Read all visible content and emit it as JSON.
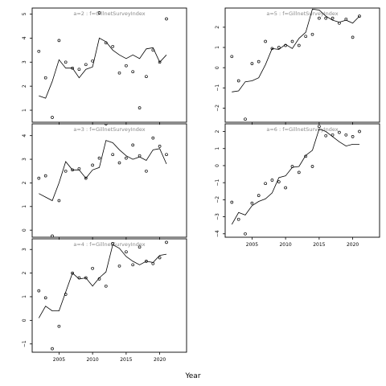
{
  "chart_data": {
    "type": "scatter",
    "xlabel": "Year",
    "xlim": [
      2001,
      2024
    ],
    "x_ticks": [
      2005,
      2010,
      2015,
      2020
    ],
    "panels": [
      {
        "label": "a=2 : f=GillnetSurveyIndex",
        "ylim": [
          0.5,
          5.25
        ],
        "y_ticks": [
          1,
          2,
          3,
          4,
          5
        ],
        "observed": {
          "x": [
            2002,
            2003,
            2004,
            2005,
            2006,
            2007,
            2008,
            2009,
            2010,
            2011,
            2012,
            2013,
            2014,
            2015,
            2016,
            2017,
            2018,
            2019,
            2020,
            2021
          ],
          "y": [
            3.45,
            2.35,
            0.7,
            3.9,
            3.0,
            2.75,
            2.7,
            2.9,
            3.05,
            5.05,
            3.8,
            3.65,
            2.55,
            2.85,
            2.6,
            1.1,
            2.4,
            3.5,
            3.0,
            4.8
          ]
        },
        "fitted": {
          "x": [
            2002,
            2003,
            2004,
            2005,
            2006,
            2007,
            2008,
            2009,
            2010,
            2011,
            2012,
            2013,
            2014,
            2015,
            2016,
            2017,
            2018,
            2019,
            2020,
            2021
          ],
          "y": [
            1.6,
            1.5,
            2.2,
            3.1,
            2.75,
            2.75,
            2.35,
            2.7,
            2.8,
            4.0,
            3.85,
            3.5,
            3.3,
            3.15,
            3.3,
            3.15,
            3.55,
            3.6,
            3.0,
            3.3
          ]
        }
      },
      {
        "label": "a=3 : f=GillnetSurveyIndex",
        "ylim": [
          -0.3,
          4.5
        ],
        "y_ticks": [
          0,
          1,
          2,
          3,
          4
        ],
        "observed": {
          "x": [
            2002,
            2003,
            2004,
            2005,
            2006,
            2007,
            2008,
            2009,
            2010,
            2011,
            2012,
            2013,
            2014,
            2015,
            2016,
            2017,
            2018,
            2019,
            2020,
            2021
          ],
          "y": [
            2.2,
            2.3,
            -0.25,
            1.25,
            2.5,
            2.55,
            2.6,
            2.2,
            2.75,
            3.05,
            4.5,
            3.2,
            2.85,
            3.05,
            3.6,
            3.15,
            2.5,
            3.9,
            3.55,
            3.2
          ]
        },
        "fitted": {
          "x": [
            2002,
            2003,
            2004,
            2005,
            2006,
            2007,
            2008,
            2009,
            2010,
            2011,
            2012,
            2013,
            2014,
            2015,
            2016,
            2017,
            2018,
            2019,
            2020,
            2021
          ],
          "y": [
            1.55,
            1.4,
            1.25,
            2.0,
            2.9,
            2.55,
            2.55,
            2.2,
            2.55,
            2.65,
            3.8,
            3.7,
            3.4,
            3.15,
            3.0,
            3.1,
            2.95,
            3.4,
            3.45,
            2.8
          ]
        }
      },
      {
        "label": "a=4 : f=GillnetSurveyIndex",
        "ylim": [
          -1.35,
          3.45
        ],
        "y_ticks": [
          -1,
          0,
          1,
          2,
          3
        ],
        "observed": {
          "x": [
            2002,
            2003,
            2004,
            2005,
            2006,
            2007,
            2008,
            2009,
            2010,
            2011,
            2012,
            2013,
            2014,
            2015,
            2016,
            2017,
            2018,
            2019,
            2020,
            2021
          ],
          "y": [
            1.25,
            0.95,
            -1.2,
            -0.25,
            1.1,
            2.0,
            1.8,
            1.8,
            2.2,
            1.75,
            1.45,
            3.25,
            2.3,
            2.9,
            2.35,
            3.1,
            2.5,
            2.4,
            2.65,
            3.3
          ]
        },
        "fitted": {
          "x": [
            2002,
            2003,
            2004,
            2005,
            2006,
            2007,
            2008,
            2009,
            2010,
            2011,
            2012,
            2013,
            2014,
            2015,
            2016,
            2017,
            2018,
            2019,
            2020,
            2021
          ],
          "y": [
            0.1,
            0.6,
            0.4,
            0.4,
            1.2,
            2.0,
            1.75,
            1.8,
            1.45,
            1.8,
            2.05,
            3.2,
            3.05,
            2.7,
            2.5,
            2.35,
            2.5,
            2.45,
            2.75,
            2.8
          ]
        }
      },
      {
        "label": "a=5 : f=GillnetSurveyIndex",
        "ylim": [
          -2.7,
          2.95
        ],
        "y_ticks": [
          -2,
          -1,
          0,
          1,
          2
        ],
        "observed": {
          "x": [
            2002,
            2003,
            2004,
            2005,
            2006,
            2007,
            2008,
            2009,
            2010,
            2011,
            2012,
            2013,
            2014,
            2015,
            2016,
            2017,
            2018,
            2019,
            2020,
            2021
          ],
          "y": [
            0.55,
            -0.65,
            -2.55,
            0.2,
            0.3,
            1.3,
            0.95,
            1.0,
            1.1,
            1.3,
            1.1,
            1.55,
            1.65,
            2.45,
            2.45,
            2.45,
            2.2,
            2.4,
            1.5,
            2.55
          ]
        },
        "fitted": {
          "x": [
            2002,
            2003,
            2004,
            2005,
            2006,
            2007,
            2008,
            2009,
            2010,
            2011,
            2012,
            2013,
            2014,
            2015,
            2016,
            2017,
            2018,
            2019,
            2020,
            2021
          ],
          "y": [
            -1.2,
            -1.15,
            -0.7,
            -0.65,
            -0.5,
            0.15,
            0.95,
            0.9,
            1.15,
            0.95,
            1.45,
            1.75,
            2.9,
            2.85,
            2.55,
            2.35,
            2.25,
            2.35,
            2.2,
            2.55
          ]
        }
      },
      {
        "label": "a=6 : f=GillnetSurveyIndex",
        "ylim": [
          -4.2,
          2.45
        ],
        "y_ticks": [
          -4,
          -3,
          -2,
          -1,
          0,
          1,
          2
        ],
        "observed": {
          "x": [
            2002,
            2003,
            2004,
            2005,
            2006,
            2007,
            2008,
            2009,
            2010,
            2011,
            2012,
            2013,
            2014,
            2015,
            2016,
            2017,
            2018,
            2019,
            2020,
            2021
          ],
          "y": [
            -2.15,
            -3.15,
            -4.0,
            -2.2,
            -1.75,
            -1.05,
            -0.85,
            -0.95,
            -1.3,
            -0.05,
            -0.4,
            0.55,
            -0.05,
            2.3,
            1.75,
            1.8,
            1.95,
            1.8,
            1.7,
            2.0
          ]
        },
        "fitted": {
          "x": [
            2002,
            2003,
            2004,
            2005,
            2006,
            2007,
            2008,
            2009,
            2010,
            2011,
            2012,
            2013,
            2014,
            2015,
            2016,
            2017,
            2018,
            2019,
            2020,
            2021
          ],
          "y": [
            -3.45,
            -2.75,
            -2.9,
            -2.35,
            -2.1,
            -1.95,
            -1.6,
            -0.7,
            -0.6,
            -0.1,
            -0.05,
            0.6,
            0.9,
            2.15,
            2.0,
            1.7,
            1.4,
            1.15,
            1.25,
            1.25
          ]
        }
      }
    ]
  }
}
